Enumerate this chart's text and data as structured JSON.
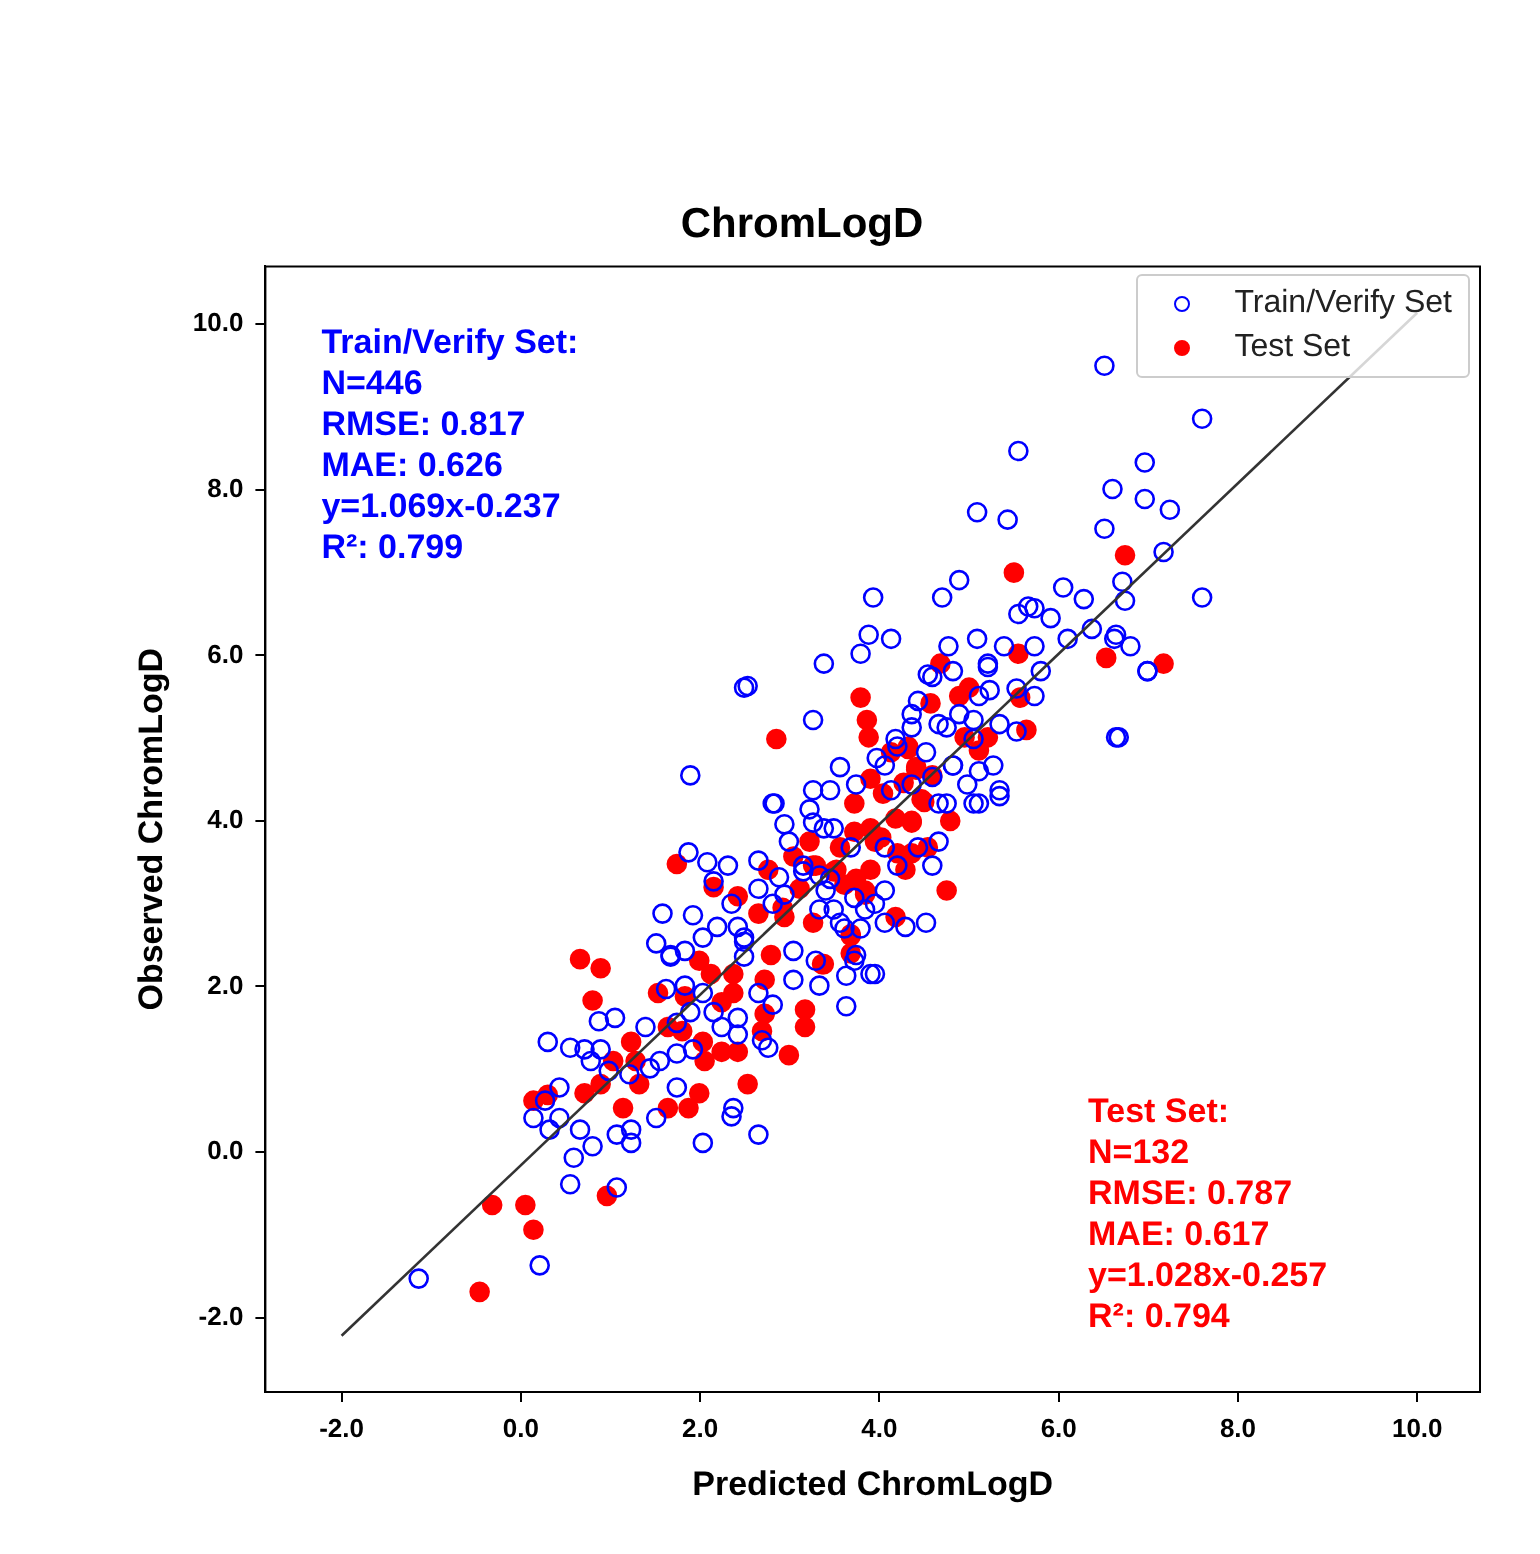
{
  "chart_data": {
    "type": "scatter",
    "title": "ChromLogD",
    "xlabel": "Predicted ChromLogD",
    "ylabel": "Observed ChromLogD",
    "xlim": [
      -2.85,
      10.7
    ],
    "ylim": [
      -2.9,
      10.7
    ],
    "xticks": [
      {
        "value": -2,
        "label": "-2.0"
      },
      {
        "value": 0,
        "label": "0.0"
      },
      {
        "value": 2,
        "label": "2.0"
      },
      {
        "value": 4,
        "label": "4.0"
      },
      {
        "value": 6,
        "label": "6.0"
      },
      {
        "value": 8,
        "label": "8.0"
      },
      {
        "value": 10,
        "label": "10.0"
      }
    ],
    "yticks": [
      {
        "value": -2,
        "label": "-2.0"
      },
      {
        "value": 0,
        "label": "0.0"
      },
      {
        "value": 2,
        "label": "2.0"
      },
      {
        "value": 4,
        "label": "4.0"
      },
      {
        "value": 6,
        "label": "6.0"
      },
      {
        "value": 8,
        "label": "8.0"
      },
      {
        "value": 10,
        "label": "10.0"
      }
    ],
    "grid": false,
    "legend": "top right",
    "marker": "circle",
    "annotations": [
      "Train/Verify Set:",
      "N=446",
      "RMSE: 0.817",
      "MAE: 0.626",
      "y=1.069x-0.237",
      "R²: 0.799",
      "Test Set:",
      "N=132",
      "RMSE: 0.787",
      "MAE: 0.617",
      "y=1.028x-0.257",
      "R²: 0.794"
    ],
    "series": [
      {
        "name": "Train/Verify Set",
        "color": "#0000ff",
        "x": [
          6.51,
          7.6,
          5.55,
          6.96,
          6.6,
          6.96,
          7.24,
          5.09,
          5.43,
          6.51,
          7.17,
          6.71,
          6.74,
          7.6,
          4.89,
          4.7,
          6.05,
          6.28,
          5.73,
          5.55,
          5.91,
          6.37,
          4.77,
          5.09,
          5.39,
          5.73,
          6.1,
          6.62,
          6.8,
          6.99,
          5.21,
          5.8,
          4.54,
          5.53,
          5.73,
          5.23,
          6.67,
          5.53,
          5.34,
          4.89,
          5.05,
          4.66,
          4.36,
          5.27,
          4.98,
          5.34,
          4.82,
          4.52,
          4.2,
          3.97,
          4.66,
          4.36,
          4.13,
          5.11,
          3.93,
          3.88,
          3.79,
          2.49,
          3.26,
          1.89,
          3.56,
          2.81,
          3.26,
          1.87,
          2.08,
          2.31,
          2.65,
          2.88,
          2.15,
          1.58,
          1.92,
          2.19,
          2.42,
          2.03,
          1.51,
          1.67,
          1.83,
          2.49,
          2.49,
          3.04,
          3.29,
          3.04,
          3.33,
          3.72,
          3.95,
          3.63,
          2.65,
          2.81,
          1.62,
          1.83,
          2.03,
          1.89,
          2.15,
          2.42,
          2.24,
          2.42,
          1.74,
          1.39,
          1.05,
          0.87,
          0.3,
          0.55,
          0.71,
          0.89,
          0.78,
          0.98,
          1.21,
          1.44,
          1.55,
          1.74,
          0.43,
          0.27,
          0.14,
          0.43,
          0.32,
          0.66,
          0.8,
          1.07,
          1.23,
          1.23,
          1.51,
          2.03,
          2.35,
          2.37,
          2.65,
          0.59,
          0.55,
          1.07,
          0.21,
          -1.14,
          2.76,
          2.69,
          1.74,
          1.92,
          3.63,
          3.33,
          3.49,
          3.56,
          3.79,
          3.95,
          3.72,
          3.4,
          2.94,
          3.15,
          3.33,
          2.65,
          2.81,
          2.35,
          2.49,
          1.67,
          2.94,
          3.26,
          3.49,
          4.59,
          4.82,
          5.21,
          5.11,
          5.05,
          4.75,
          4.43,
          4.36,
          4.18,
          4.06,
          4.59,
          4.82,
          5.11,
          5.34,
          5.05,
          4.75,
          3.74,
          3.45,
          3.22,
          2.83,
          2.99,
          3.38,
          3.68,
          4.06,
          4.43,
          4.66,
          4.2,
          4.59,
          3.45,
          3.15,
          4.06,
          3.84,
          4.29,
          4.52,
          4.06,
          3.61,
          3.74,
          3.9,
          5.66,
          6.64,
          6.99,
          6.64,
          4.13,
          3.38,
          2.53
        ],
        "values": [
          9.5,
          8.86,
          8.47,
          8.33,
          8.01,
          7.89,
          7.76,
          7.73,
          7.64,
          7.53,
          7.25,
          6.89,
          6.66,
          6.7,
          6.91,
          6.7,
          6.82,
          6.68,
          6.57,
          6.5,
          6.45,
          6.32,
          6.11,
          6.2,
          6.11,
          6.11,
          6.2,
          6.2,
          6.11,
          5.81,
          5.86,
          5.81,
          5.77,
          5.6,
          5.51,
          5.58,
          5.01,
          5.08,
          5.17,
          5.29,
          4.99,
          5.17,
          5.29,
          4.67,
          4.44,
          4.3,
          4.67,
          4.83,
          4.9,
          4.76,
          4.21,
          4.44,
          4.37,
          4.21,
          6.7,
          6.25,
          6.02,
          5.61,
          5.22,
          4.55,
          4.65,
          4.21,
          4.37,
          3.62,
          3.5,
          3.46,
          3.52,
          3.32,
          3.27,
          2.88,
          2.86,
          2.72,
          2.72,
          2.59,
          2.52,
          2.36,
          2.43,
          2.59,
          2.36,
          2.43,
          2.31,
          2.08,
          2.01,
          2.31,
          2.15,
          1.76,
          1.92,
          1.78,
          1.97,
          2.01,
          1.92,
          1.69,
          1.69,
          1.62,
          1.51,
          1.42,
          1.56,
          1.51,
          1.62,
          1.58,
          1.33,
          1.26,
          1.24,
          1.24,
          1.1,
          0.98,
          0.94,
          1.01,
          1.1,
          0.78,
          0.78,
          0.62,
          0.41,
          0.41,
          0.27,
          0.27,
          0.07,
          0.21,
          0.27,
          0.11,
          0.41,
          0.11,
          0.43,
          0.53,
          0.21,
          -0.07,
          -0.39,
          -0.43,
          -1.37,
          -1.53,
          1.26,
          1.35,
          1.19,
          1.24,
          2.13,
          2.93,
          2.93,
          2.77,
          2.7,
          3.0,
          3.07,
          3.16,
          3.11,
          3.39,
          3.34,
          3.18,
          3.0,
          3.0,
          2.54,
          2.38,
          3.96,
          3.98,
          3.91,
          5.74,
          5.81,
          5.9,
          5.51,
          5.22,
          5.13,
          5.45,
          5.13,
          4.99,
          4.67,
          4.53,
          4.67,
          4.6,
          4.37,
          4.21,
          4.21,
          4.44,
          4.37,
          4.14,
          4.21,
          3.75,
          3.91,
          3.68,
          3.68,
          3.68,
          3.75,
          3.46,
          3.46,
          3.3,
          3.46,
          3.16,
          2.93,
          2.72,
          2.77,
          2.77,
          2.7,
          2.38,
          2.15,
          6.59,
          6.25,
          5.81,
          5.01,
          6.2,
          5.9,
          5.63
        ]
      },
      {
        "name": "Test Set",
        "color": "#ff0000",
        "x": [
          6.74,
          5.5,
          4.68,
          5.55,
          6.53,
          7.17,
          5.0,
          4.89,
          4.57,
          5.57,
          5.64,
          4.95,
          5.21,
          5.11,
          4.13,
          4.32,
          4.41,
          4.59,
          4.27,
          4.04,
          4.47,
          4.79,
          4.36,
          3.79,
          2.85,
          3.86,
          3.88,
          3.72,
          3.9,
          1.74,
          2.15,
          2.42,
          0.66,
          0.89,
          0.8,
          1.99,
          2.12,
          1.53,
          1.83,
          1.23,
          1.03,
          1.28,
          0.89,
          0.71,
          0.3,
          0.14,
          1.32,
          1.14,
          1.64,
          1.87,
          1.99,
          1.64,
          1.8,
          2.03,
          2.24,
          2.42,
          2.05,
          2.53,
          2.99,
          3.17,
          3.17,
          2.72,
          2.69,
          2.72,
          2.37,
          2.24,
          2.37,
          2.79,
          3.36,
          3.68,
          3.68,
          0.96,
          -0.32,
          0.05,
          0.14,
          -0.46,
          3.26,
          2.94,
          2.92,
          2.65,
          2.76,
          3.04,
          3.22,
          3.26,
          3.11,
          3.49,
          3.61,
          3.84,
          3.9,
          3.72,
          3.56,
          4.75,
          4.32,
          4.41,
          4.5,
          4.18,
          4.36,
          3.9,
          4.02,
          3.95,
          4.54,
          4.36,
          4.2,
          4.29,
          3.74,
          3.52,
          3.29,
          3.84,
          4.18,
          3.68,
          3.38
        ],
        "values": [
          7.21,
          7.0,
          5.9,
          6.02,
          5.97,
          5.9,
          5.61,
          5.51,
          5.42,
          5.49,
          5.1,
          5.01,
          5.01,
          4.85,
          4.83,
          4.9,
          4.65,
          4.55,
          4.46,
          4.33,
          4.26,
          4.0,
          4.0,
          5.49,
          4.99,
          5.22,
          5.01,
          4.21,
          4.51,
          3.48,
          3.2,
          3.09,
          2.33,
          2.22,
          1.83,
          2.31,
          2.15,
          1.92,
          1.88,
          1.33,
          1.1,
          1.1,
          0.82,
          0.71,
          0.69,
          0.62,
          0.82,
          0.53,
          0.53,
          0.53,
          0.71,
          1.51,
          1.46,
          1.33,
          1.21,
          1.21,
          1.1,
          0.82,
          1.17,
          1.72,
          1.51,
          1.67,
          1.46,
          2.08,
          1.92,
          1.81,
          2.15,
          2.38,
          2.27,
          2.61,
          2.4,
          -0.53,
          -0.64,
          -0.64,
          -0.94,
          -1.69,
          2.77,
          2.84,
          2.95,
          2.88,
          3.41,
          3.57,
          3.75,
          3.46,
          3.18,
          3.39,
          3.23,
          3.16,
          3.41,
          3.87,
          3.68,
          3.16,
          4.87,
          4.62,
          4.23,
          4.03,
          3.98,
          3.91,
          3.8,
          3.75,
          3.68,
          3.61,
          3.61,
          3.41,
          3.3,
          3.41,
          3.46,
          3.11,
          2.84,
          2.63,
          2.27
        ]
      },
      {
        "type": "line",
        "marker": "none",
        "color": "#333333",
        "x": [
          -2,
          10
        ],
        "values": [
          -2.22,
          10.14
        ]
      }
    ]
  }
}
